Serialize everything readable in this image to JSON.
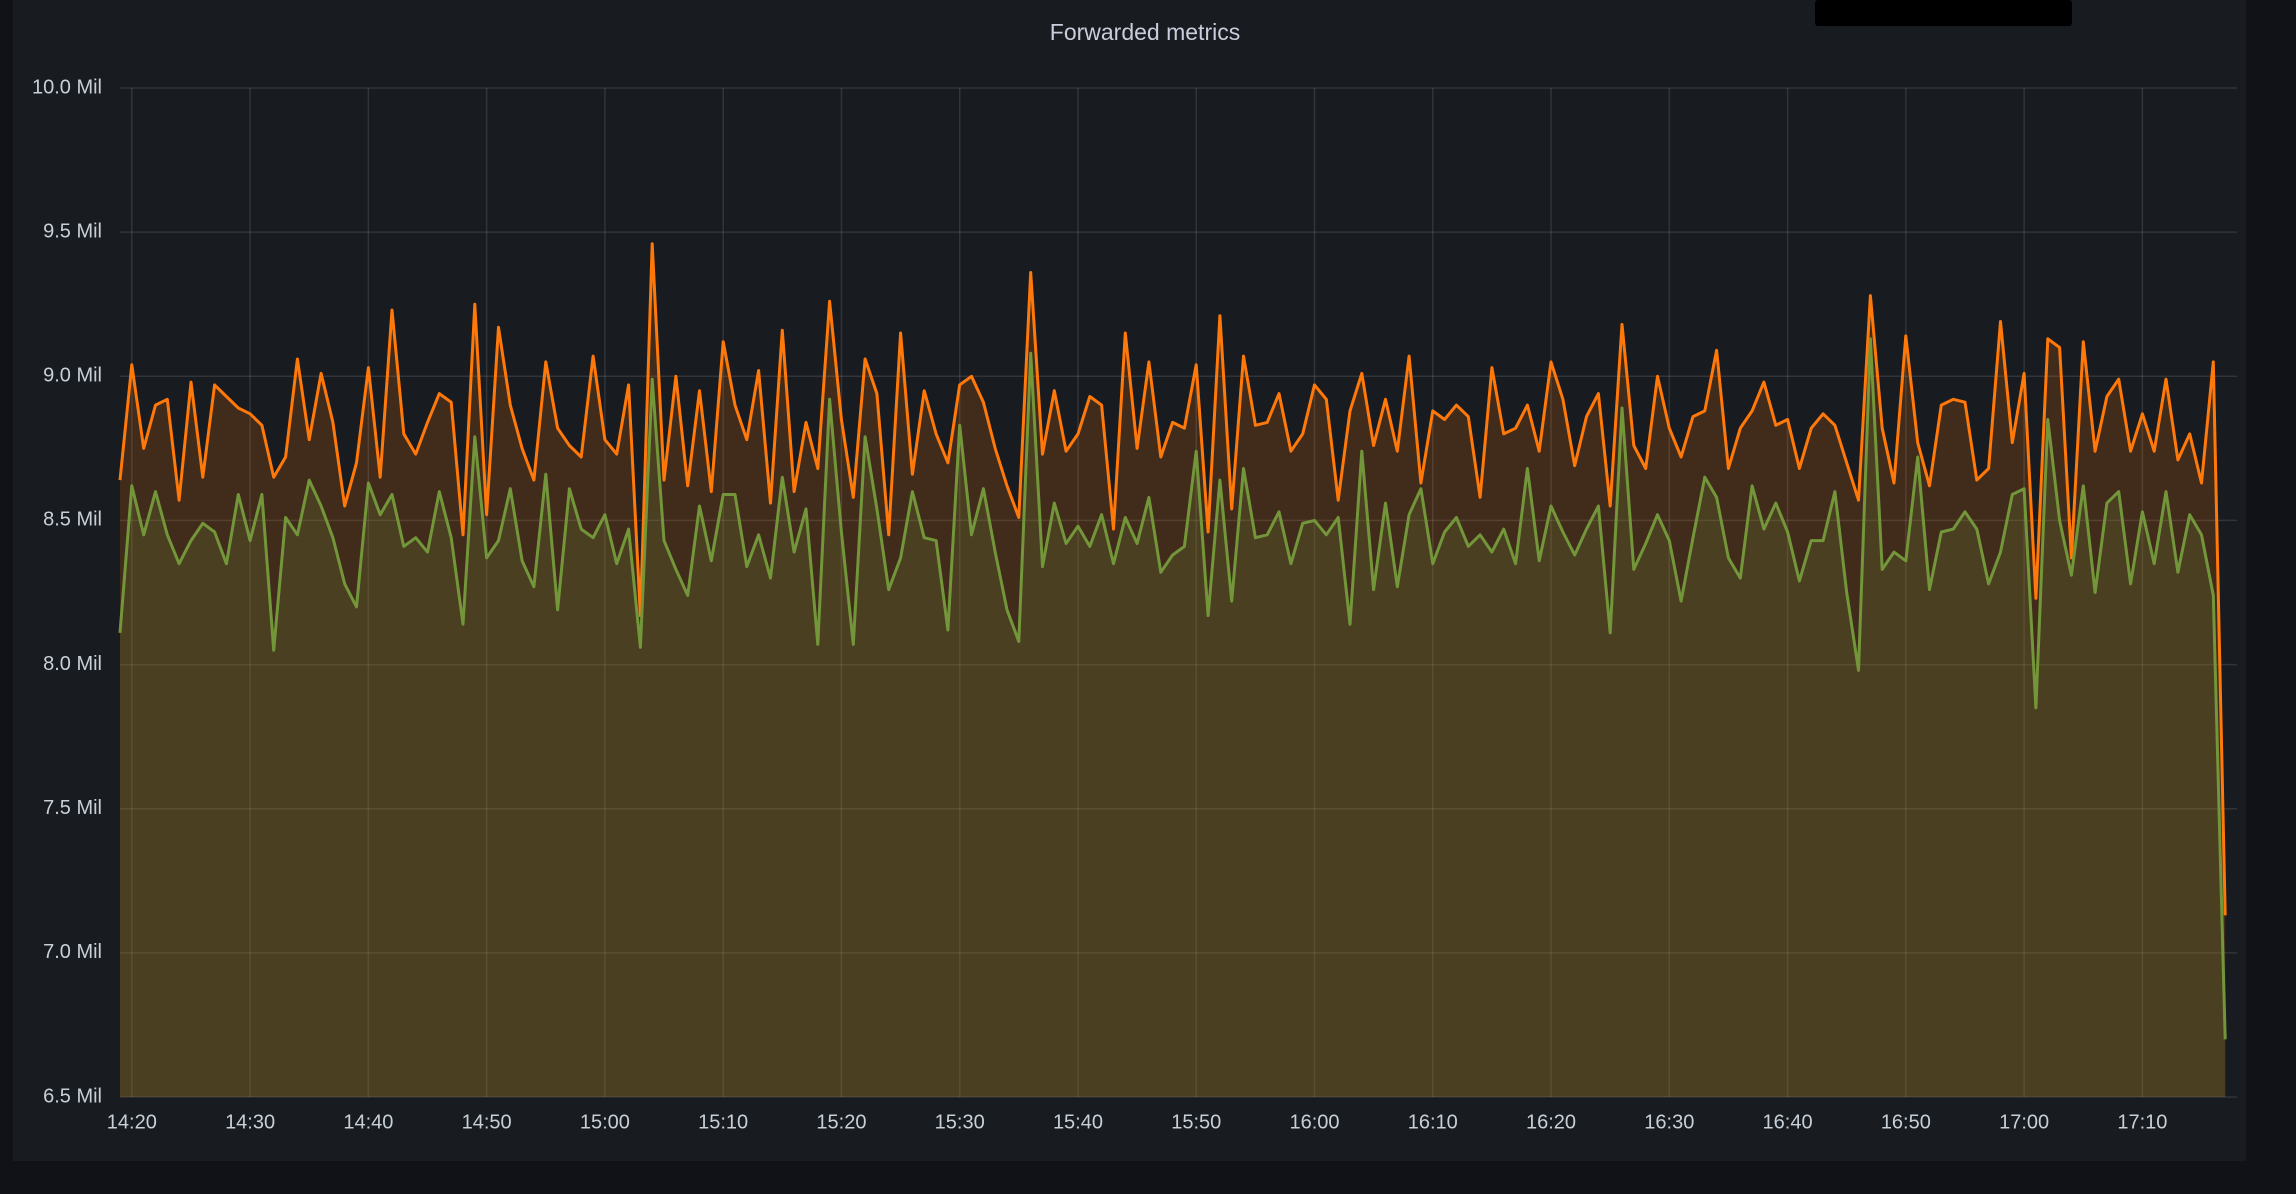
{
  "chart_data": {
    "type": "area-line",
    "title": "Forwarded metrics",
    "x": [
      "14:19",
      "14:20",
      "14:21",
      "14:22",
      "14:23",
      "14:24",
      "14:25",
      "14:26",
      "14:27",
      "14:28",
      "14:29",
      "14:30",
      "14:31",
      "14:32",
      "14:33",
      "14:34",
      "14:35",
      "14:36",
      "14:37",
      "14:38",
      "14:39",
      "14:40",
      "14:41",
      "14:42",
      "14:43",
      "14:44",
      "14:45",
      "14:46",
      "14:47",
      "14:48",
      "14:49",
      "14:50",
      "14:51",
      "14:52",
      "14:53",
      "14:54",
      "14:55",
      "14:56",
      "14:57",
      "14:58",
      "14:59",
      "15:00",
      "15:01",
      "15:02",
      "15:03",
      "15:04",
      "15:05",
      "15:06",
      "15:07",
      "15:08",
      "15:09",
      "15:10",
      "15:11",
      "15:12",
      "15:13",
      "15:14",
      "15:15",
      "15:16",
      "15:17",
      "15:18",
      "15:19",
      "15:20",
      "15:21",
      "15:22",
      "15:23",
      "15:24",
      "15:25",
      "15:26",
      "15:27",
      "15:28",
      "15:29",
      "15:30",
      "15:31",
      "15:32",
      "15:33",
      "15:34",
      "15:35",
      "15:36",
      "15:37",
      "15:38",
      "15:39",
      "15:40",
      "15:41",
      "15:42",
      "15:43",
      "15:44",
      "15:45",
      "15:46",
      "15:47",
      "15:48",
      "15:49",
      "15:50",
      "15:51",
      "15:52",
      "15:53",
      "15:54",
      "15:55",
      "15:56",
      "15:57",
      "15:58",
      "15:59",
      "16:00",
      "16:01",
      "16:02",
      "16:03",
      "16:04",
      "16:05",
      "16:06",
      "16:07",
      "16:08",
      "16:09",
      "16:10",
      "16:11",
      "16:12",
      "16:13",
      "16:14",
      "16:15",
      "16:16",
      "16:17",
      "16:18",
      "16:19",
      "16:20",
      "16:21",
      "16:22",
      "16:23",
      "16:24",
      "16:25",
      "16:26",
      "16:27",
      "16:28",
      "16:29",
      "16:30",
      "16:31",
      "16:32",
      "16:33",
      "16:34",
      "16:35",
      "16:36",
      "16:37",
      "16:38",
      "16:39",
      "16:40",
      "16:41",
      "16:42",
      "16:43",
      "16:44",
      "16:45",
      "16:46",
      "16:47",
      "16:48",
      "16:49",
      "16:50",
      "16:51",
      "16:52",
      "16:53",
      "16:54",
      "16:55",
      "16:56",
      "16:57",
      "16:58",
      "16:59",
      "17:00",
      "17:01",
      "17:02",
      "17:03",
      "17:04",
      "17:05",
      "17:06",
      "17:07",
      "17:08",
      "17:09",
      "17:10",
      "17:11",
      "17:12",
      "17:13",
      "17:14",
      "17:15",
      "17:16",
      "17:17"
    ],
    "series": [
      {
        "color": "#ff780a",
        "values": [
          8.64,
          9.04,
          8.75,
          8.9,
          8.92,
          8.57,
          8.98,
          8.65,
          8.97,
          8.93,
          8.89,
          8.87,
          8.83,
          8.65,
          8.72,
          9.06,
          8.78,
          9.01,
          8.84,
          8.55,
          8.7,
          9.03,
          8.65,
          9.23,
          8.8,
          8.73,
          8.84,
          8.94,
          8.91,
          8.45,
          9.25,
          8.52,
          9.17,
          8.9,
          8.75,
          8.64,
          9.05,
          8.82,
          8.76,
          8.72,
          9.07,
          8.78,
          8.73,
          8.97,
          8.17,
          9.46,
          8.64,
          9.0,
          8.62,
          8.95,
          8.6,
          9.12,
          8.9,
          8.78,
          9.02,
          8.56,
          9.16,
          8.6,
          8.84,
          8.68,
          9.26,
          8.85,
          8.58,
          9.06,
          8.94,
          8.45,
          9.15,
          8.66,
          8.95,
          8.8,
          8.7,
          8.97,
          9.0,
          8.91,
          8.75,
          8.62,
          8.51,
          9.36,
          8.73,
          8.95,
          8.74,
          8.8,
          8.93,
          8.9,
          8.47,
          9.15,
          8.75,
          9.05,
          8.72,
          8.84,
          8.82,
          9.04,
          8.46,
          9.21,
          8.54,
          9.07,
          8.83,
          8.84,
          8.94,
          8.74,
          8.8,
          8.97,
          8.92,
          8.57,
          8.88,
          9.01,
          8.76,
          8.92,
          8.74,
          9.07,
          8.63,
          8.88,
          8.85,
          8.9,
          8.86,
          8.58,
          9.03,
          8.8,
          8.82,
          8.9,
          8.74,
          9.05,
          8.92,
          8.69,
          8.86,
          8.94,
          8.55,
          9.18,
          8.76,
          8.68,
          9.0,
          8.82,
          8.72,
          8.86,
          8.88,
          9.09,
          8.68,
          8.82,
          8.88,
          8.98,
          8.83,
          8.85,
          8.68,
          8.82,
          8.87,
          8.83,
          8.7,
          8.57,
          9.28,
          8.82,
          8.63,
          9.14,
          8.77,
          8.62,
          8.9,
          8.92,
          8.91,
          8.64,
          8.68,
          9.19,
          8.77,
          9.01,
          8.23,
          9.13,
          9.1,
          8.37,
          9.12,
          8.74,
          8.93,
          8.99,
          8.74,
          8.87,
          8.74,
          8.99,
          8.71,
          8.8,
          8.63,
          9.05,
          7.13
        ]
      },
      {
        "color": "#73963a",
        "values": [
          8.11,
          8.62,
          8.45,
          8.6,
          8.45,
          8.35,
          8.43,
          8.49,
          8.46,
          8.35,
          8.59,
          8.43,
          8.59,
          8.05,
          8.51,
          8.45,
          8.64,
          8.55,
          8.44,
          8.28,
          8.2,
          8.63,
          8.52,
          8.59,
          8.41,
          8.44,
          8.39,
          8.6,
          8.44,
          8.14,
          8.79,
          8.37,
          8.43,
          8.61,
          8.36,
          8.27,
          8.66,
          8.19,
          8.61,
          8.47,
          8.44,
          8.52,
          8.35,
          8.47,
          8.06,
          8.99,
          8.43,
          8.33,
          8.24,
          8.55,
          8.36,
          8.59,
          8.59,
          8.34,
          8.45,
          8.3,
          8.65,
          8.39,
          8.54,
          8.07,
          8.92,
          8.46,
          8.07,
          8.79,
          8.54,
          8.26,
          8.37,
          8.6,
          8.44,
          8.43,
          8.12,
          8.83,
          8.45,
          8.61,
          8.39,
          8.19,
          8.08,
          9.08,
          8.34,
          8.56,
          8.42,
          8.48,
          8.41,
          8.52,
          8.35,
          8.51,
          8.42,
          8.58,
          8.32,
          8.38,
          8.41,
          8.74,
          8.17,
          8.64,
          8.22,
          8.68,
          8.44,
          8.45,
          8.53,
          8.35,
          8.49,
          8.5,
          8.45,
          8.51,
          8.14,
          8.74,
          8.26,
          8.56,
          8.27,
          8.52,
          8.61,
          8.35,
          8.46,
          8.51,
          8.41,
          8.45,
          8.39,
          8.47,
          8.35,
          8.68,
          8.36,
          8.55,
          8.46,
          8.38,
          8.47,
          8.55,
          8.11,
          8.89,
          8.33,
          8.42,
          8.52,
          8.43,
          8.22,
          8.44,
          8.65,
          8.58,
          8.37,
          8.3,
          8.62,
          8.47,
          8.56,
          8.46,
          8.29,
          8.43,
          8.43,
          8.6,
          8.25,
          7.98,
          9.13,
          8.33,
          8.39,
          8.36,
          8.72,
          8.26,
          8.46,
          8.47,
          8.53,
          8.47,
          8.28,
          8.39,
          8.59,
          8.61,
          7.85,
          8.85,
          8.5,
          8.31,
          8.62,
          8.25,
          8.56,
          8.6,
          8.28,
          8.53,
          8.35,
          8.6,
          8.32,
          8.52,
          8.45,
          8.24,
          6.7
        ]
      }
    ],
    "xlim": [
      "14:19",
      "17:18"
    ],
    "xticks": [
      "14:20",
      "14:30",
      "14:40",
      "14:50",
      "15:00",
      "15:10",
      "15:20",
      "15:30",
      "15:40",
      "15:50",
      "16:00",
      "16:10",
      "16:20",
      "16:30",
      "16:40",
      "16:50",
      "17:00",
      "17:10"
    ],
    "ylim": [
      6.5,
      10
    ],
    "yticks": [
      {
        "value": 6.5,
        "label": "6.5 Mil"
      },
      {
        "value": 7,
        "label": "7.0 Mil"
      },
      {
        "value": 7.5,
        "label": "7.5 Mil"
      },
      {
        "value": 8,
        "label": "8.0 Mil"
      },
      {
        "value": 8.5,
        "label": "8.5 Mil"
      },
      {
        "value": 9,
        "label": "9.0 Mil"
      },
      {
        "value": 9.5,
        "label": "9.5 Mil"
      },
      {
        "value": 10,
        "label": "10.0 Mil"
      }
    ],
    "grid": true
  }
}
